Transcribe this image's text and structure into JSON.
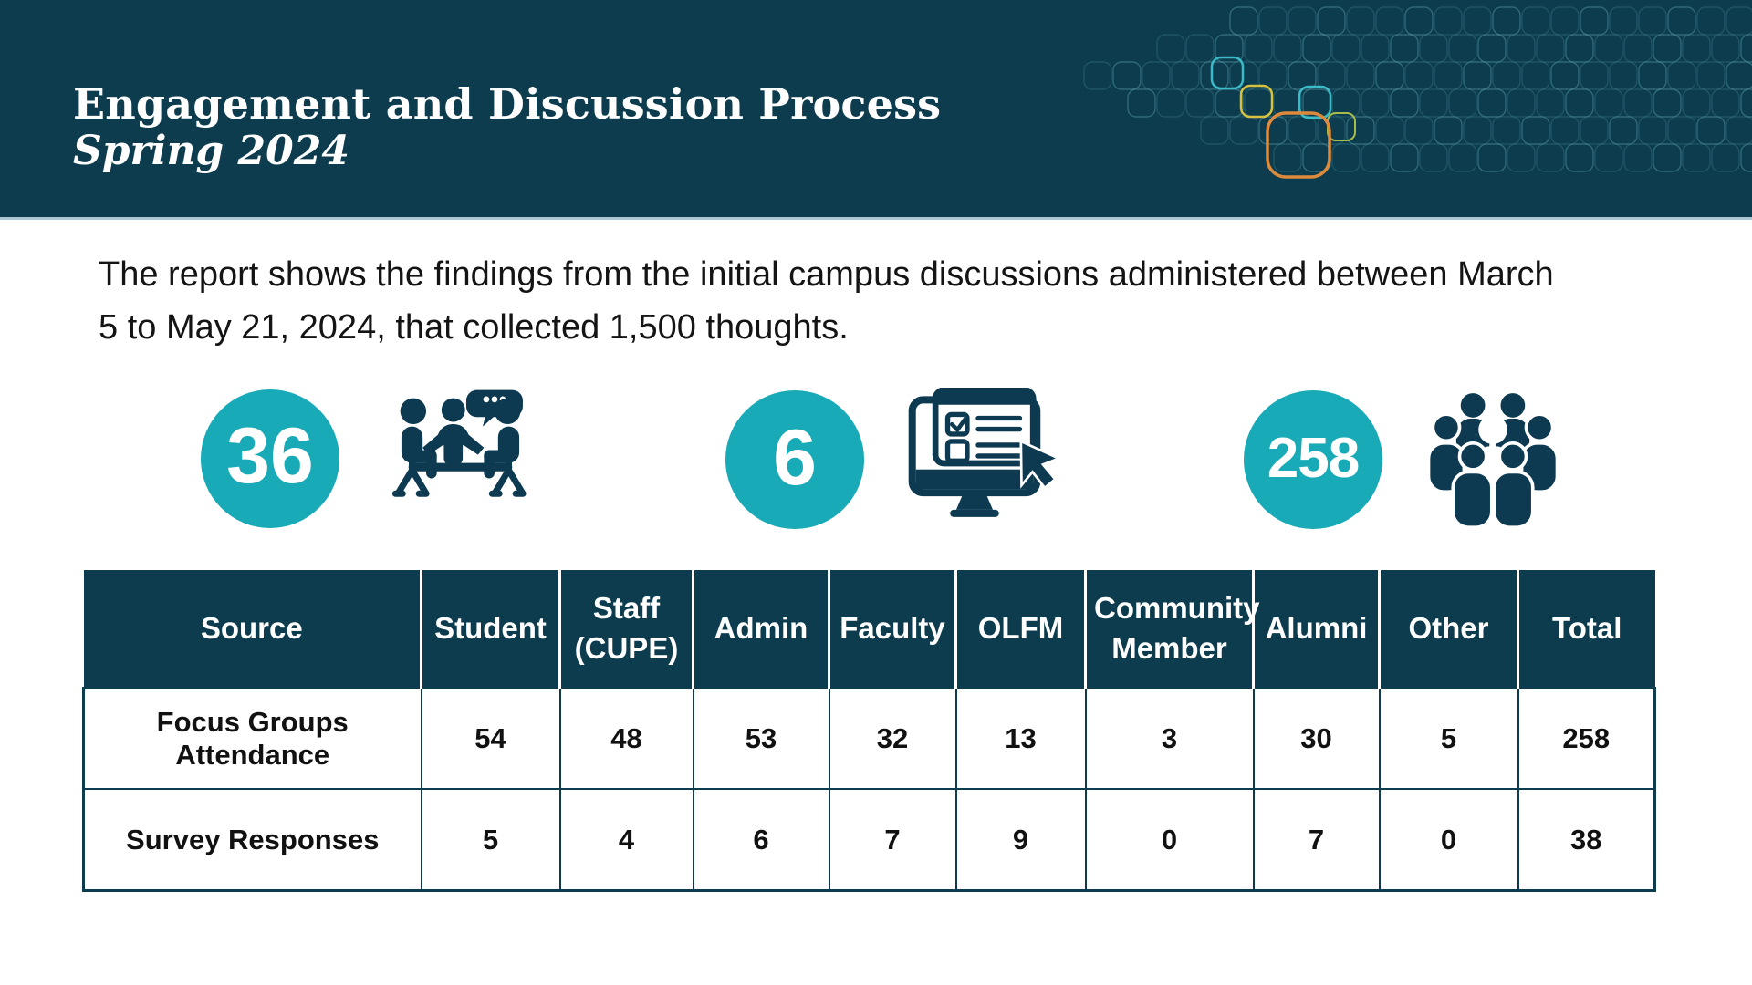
{
  "header": {
    "title": "Engagement and Discussion Process",
    "subtitle": "Spring 2024"
  },
  "intro": {
    "text": "The report shows the findings from the initial campus discussions administered between March 5 to May 21, 2024, that collected 1,500 thoughts."
  },
  "stats": [
    {
      "value": "36",
      "icon": "focus-group-discussion"
    },
    {
      "value": "6",
      "icon": "online-survey"
    },
    {
      "value": "258",
      "icon": "audience-group"
    }
  ],
  "table": {
    "columns": [
      "Source",
      "Student",
      "Staff (CUPE)",
      "Admin",
      "Faculty",
      "OLFM",
      "Community Member",
      "Alumni",
      "Other",
      "Total"
    ],
    "rows": [
      {
        "label": "Focus Groups Attendance",
        "values": [
          "54",
          "48",
          "53",
          "32",
          "13",
          "3",
          "30",
          "5",
          "258"
        ]
      },
      {
        "label": "Survey Responses",
        "values": [
          "5",
          "4",
          "6",
          "7",
          "9",
          "0",
          "7",
          "0",
          "38"
        ]
      }
    ]
  },
  "colors": {
    "dark_teal": "#0c3c4d",
    "accent_teal": "#18aab6",
    "icon_dark": "#0d3a50",
    "header_rule": "#aac9d4",
    "pattern_cyan": "#3ec2cd",
    "pattern_yellow": "#e0c83e",
    "pattern_orange": "#dd8a3c",
    "text": "#141414"
  }
}
